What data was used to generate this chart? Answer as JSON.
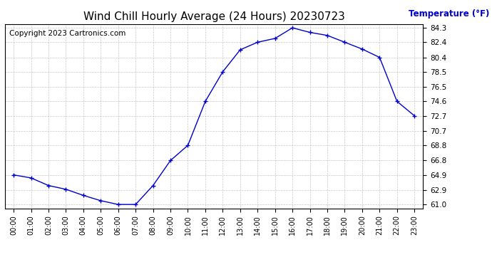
{
  "title": "Wind Chill Hourly Average (24 Hours) 20230723",
  "ylabel": "Temperature (°F)",
  "copyright": "Copyright 2023 Cartronics.com",
  "hours": [
    "00:00",
    "01:00",
    "02:00",
    "03:00",
    "04:00",
    "05:00",
    "06:00",
    "07:00",
    "08:00",
    "09:00",
    "10:00",
    "11:00",
    "12:00",
    "13:00",
    "14:00",
    "15:00",
    "16:00",
    "17:00",
    "18:00",
    "19:00",
    "20:00",
    "21:00",
    "22:00",
    "23:00"
  ],
  "values": [
    64.9,
    64.5,
    63.5,
    63.0,
    62.2,
    61.5,
    61.0,
    61.0,
    63.5,
    66.8,
    68.8,
    74.6,
    78.5,
    81.4,
    82.4,
    82.9,
    84.3,
    83.7,
    83.3,
    82.4,
    81.5,
    80.4,
    74.6,
    72.7
  ],
  "line_color": "#0000cc",
  "marker": "+",
  "ylim_min": 60.5,
  "ylim_max": 84.8,
  "yticks": [
    61.0,
    62.9,
    64.9,
    66.8,
    68.8,
    70.7,
    72.7,
    74.6,
    76.5,
    78.5,
    80.4,
    82.4,
    84.3
  ],
  "bg_color": "#ffffff",
  "grid_color": "#bbbbbb",
  "title_fontsize": 11,
  "ylabel_color": "#0000cc",
  "copyright_color": "#000000",
  "copyright_fontsize": 7.5
}
